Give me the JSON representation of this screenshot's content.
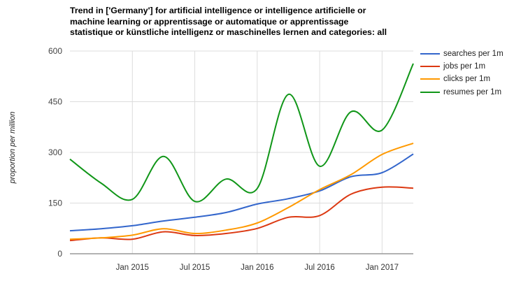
{
  "chart_data": {
    "type": "line",
    "title": "Trend in ['Germany'] for artificial intelligence or intelligence artificielle or machine learning or apprentissage or automatique or apprentissage statistique or künstliche intelligenz or maschinelles lernen and categories: all",
    "xlabel": "",
    "ylabel": "proportion per million",
    "ylim": [
      0,
      600
    ],
    "yticks": [
      0,
      150,
      300,
      450,
      600
    ],
    "ytick_labels": [
      "0",
      "150",
      "300",
      "450",
      "600"
    ],
    "x": [
      "Jul 2014",
      "Oct 2014",
      "Jan 2015",
      "Apr 2015",
      "Jul 2015",
      "Oct 2015",
      "Jan 2016",
      "Apr 2016",
      "Jul 2016",
      "Oct 2016",
      "Jan 2017",
      "Apr 2017"
    ],
    "xticks": [
      "Jan 2015",
      "Jul 2015",
      "Jan 2016",
      "Jul 2016",
      "Jan 2017"
    ],
    "grid": true,
    "legend_position": "right",
    "series": [
      {
        "name": "searches per 1m",
        "color": "#3366cc",
        "values": [
          68,
          74,
          83,
          97,
          108,
          122,
          147,
          163,
          186,
          228,
          240,
          295
        ]
      },
      {
        "name": "jobs per 1m",
        "color": "#dc3912",
        "values": [
          39,
          47,
          43,
          65,
          54,
          60,
          75,
          108,
          113,
          176,
          197,
          194
        ]
      },
      {
        "name": "clicks per 1m",
        "color": "#ff9900",
        "values": [
          43,
          47,
          55,
          74,
          60,
          70,
          91,
          137,
          190,
          234,
          294,
          327
        ]
      },
      {
        "name": "resumes per 1m",
        "color": "#109618",
        "values": [
          280,
          209,
          161,
          288,
          155,
          221,
          193,
          472,
          259,
          420,
          366,
          563
        ]
      }
    ]
  }
}
